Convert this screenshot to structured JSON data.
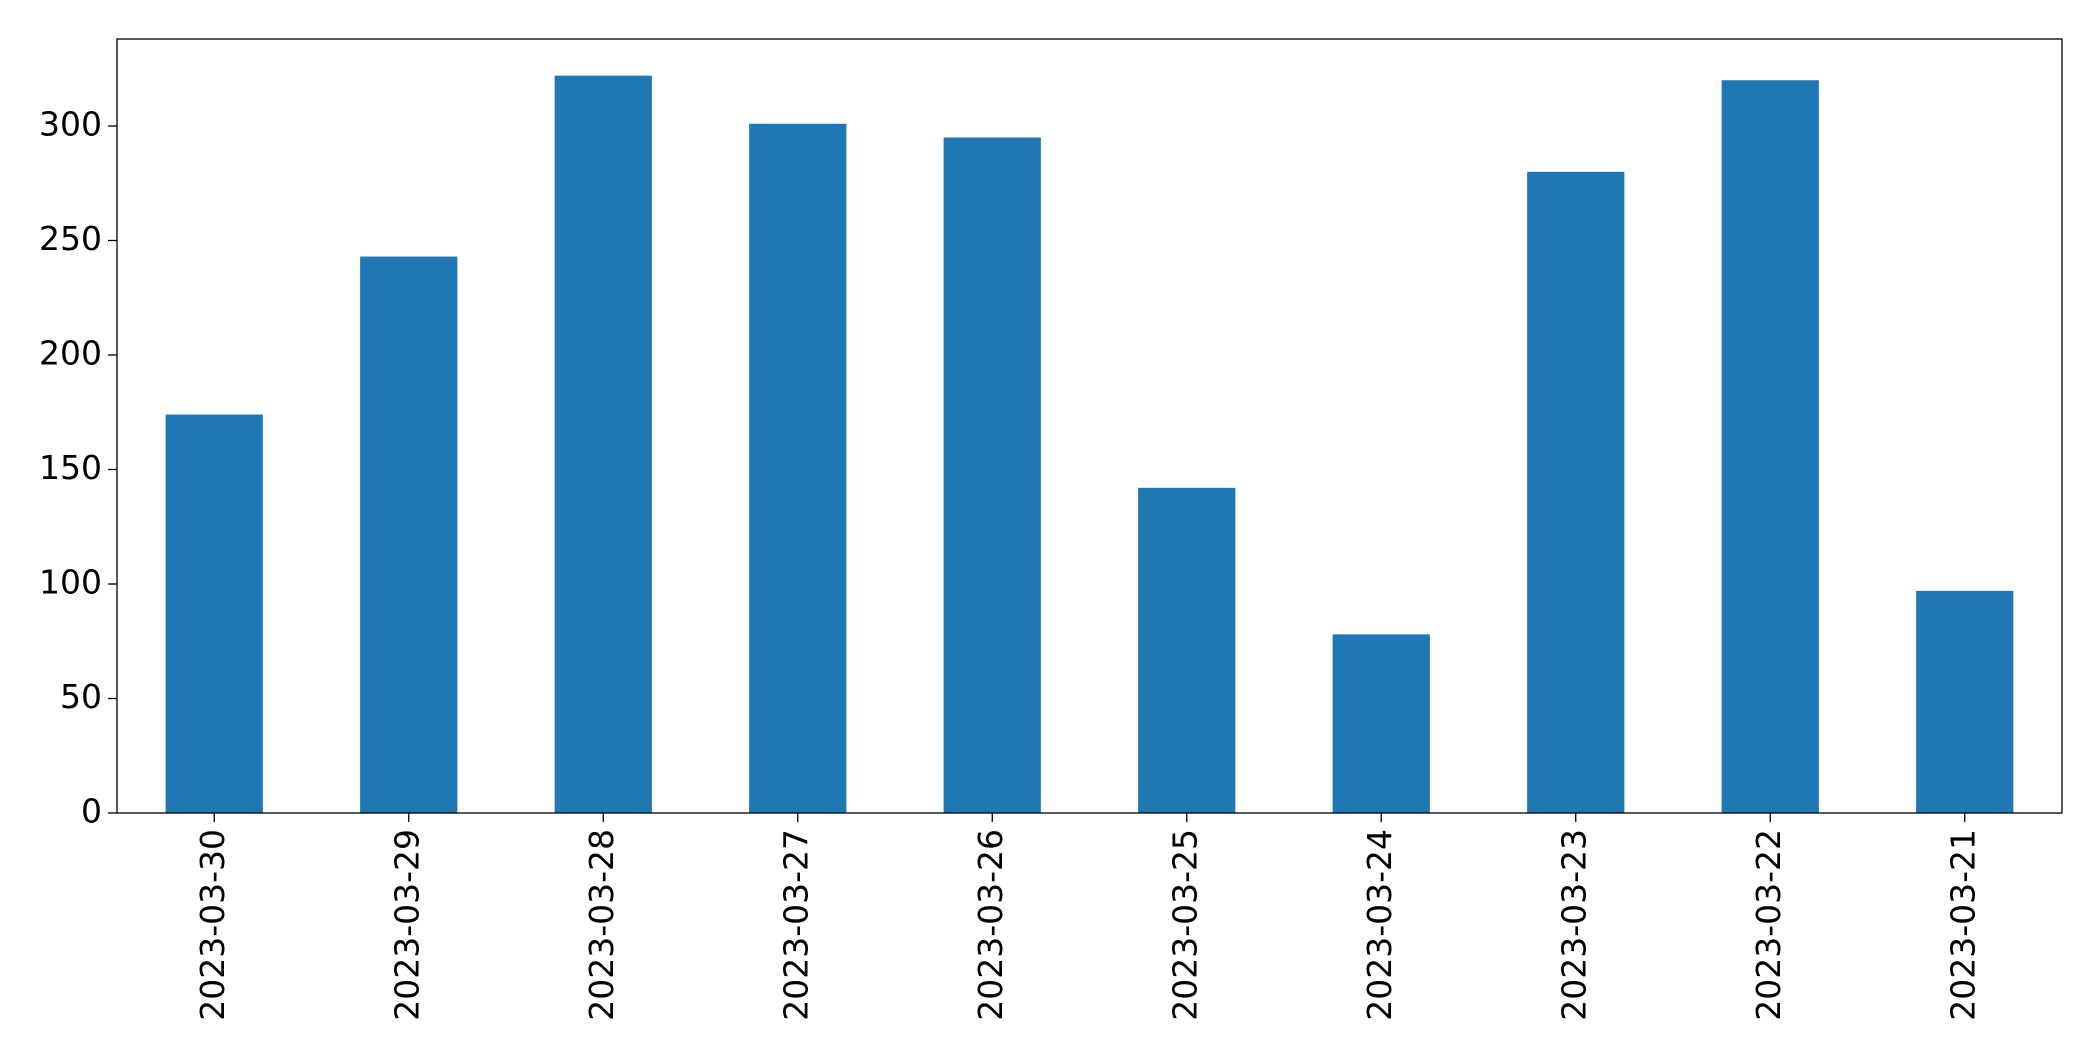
{
  "chart_data": {
    "type": "bar",
    "categories": [
      "2023-03-30",
      "2023-03-29",
      "2023-03-28",
      "2023-03-27",
      "2023-03-26",
      "2023-03-25",
      "2023-03-24",
      "2023-03-23",
      "2023-03-22",
      "2023-03-21"
    ],
    "values": [
      174,
      243,
      322,
      301,
      295,
      142,
      78,
      280,
      320,
      97
    ],
    "color": "#1f77b4",
    "ylim": [
      0,
      338
    ],
    "yticks": [
      0,
      50,
      100,
      150,
      200,
      250,
      300
    ],
    "grid": false
  }
}
